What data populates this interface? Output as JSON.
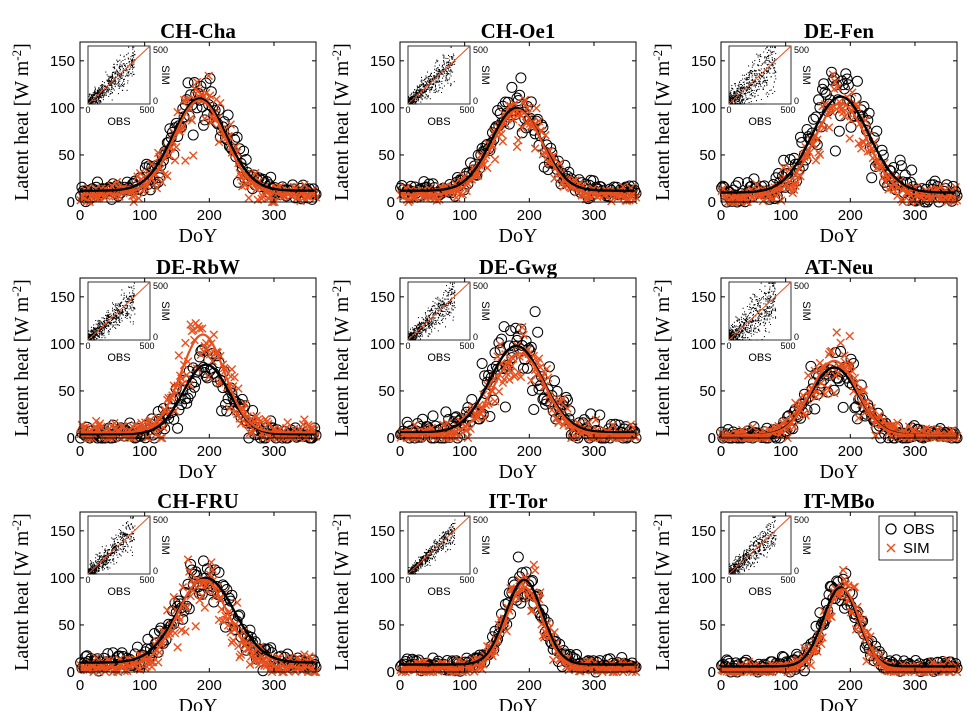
{
  "figure": {
    "ylabel_main": "Latent heat [W m",
    "ylabel_sup": "-2",
    "ylabel_close": "]",
    "xlabel": "DoY",
    "legend": [
      {
        "label": "OBS",
        "marker": "circle",
        "color": "#000000"
      },
      {
        "label": "SIM",
        "marker": "cross",
        "color": "#e8501e"
      }
    ],
    "colors": {
      "obs": "#000000",
      "sim": "#e8501e",
      "diag": "#e8501e"
    }
  },
  "chart_data": [
    {
      "type": "scatter",
      "title": "CH-Cha",
      "xlabel": "DoY",
      "ylabel": "Latent heat [W m-2]",
      "xlim": [
        0,
        365
      ],
      "ylim": [
        0,
        170
      ],
      "xticks": [
        0,
        100,
        200,
        300
      ],
      "yticks": [
        0,
        50,
        100,
        150
      ],
      "series": [
        {
          "name": "OBS",
          "model": {
            "base": 12,
            "peak": 110,
            "center": 185,
            "width": 58,
            "noise": 12
          }
        },
        {
          "name": "SIM",
          "model": {
            "base": 8,
            "peak": 108,
            "center": 185,
            "width": 56,
            "noise": 13
          }
        }
      ],
      "inset": {
        "xlabel": "OBS",
        "ylabel": "SIM",
        "xticks": [
          0,
          500
        ],
        "yticks": [
          0,
          500
        ],
        "spread": "medium"
      }
    },
    {
      "type": "scatter",
      "title": "CH-Oe1",
      "xlabel": "DoY",
      "ylabel": "Latent heat [W m-2]",
      "xlim": [
        0,
        365
      ],
      "ylim": [
        0,
        170
      ],
      "xticks": [
        0,
        100,
        200,
        300
      ],
      "yticks": [
        0,
        50,
        100,
        150
      ],
      "series": [
        {
          "name": "OBS",
          "model": {
            "base": 12,
            "peak": 100,
            "center": 180,
            "width": 55,
            "noise": 10
          }
        },
        {
          "name": "SIM",
          "model": {
            "base": 8,
            "peak": 98,
            "center": 182,
            "width": 54,
            "noise": 11
          }
        }
      ],
      "inset": {
        "xlabel": "OBS",
        "ylabel": "SIM",
        "xticks": [
          0,
          500
        ],
        "yticks": [
          0,
          500
        ],
        "spread": "medium"
      }
    },
    {
      "type": "scatter",
      "title": "DE-Fen",
      "xlabel": "DoY",
      "ylabel": "Latent heat [W m-2]",
      "xlim": [
        0,
        365
      ],
      "ylim": [
        0,
        170
      ],
      "xticks": [
        0,
        100,
        200,
        300
      ],
      "yticks": [
        0,
        50,
        100,
        150
      ],
      "series": [
        {
          "name": "OBS",
          "model": {
            "base": 10,
            "peak": 112,
            "center": 185,
            "width": 62,
            "noise": 16
          }
        },
        {
          "name": "SIM",
          "model": {
            "base": 6,
            "peak": 105,
            "center": 185,
            "width": 58,
            "noise": 14
          }
        }
      ],
      "inset": {
        "xlabel": "OBS",
        "ylabel": "SIM",
        "xticks": [
          0,
          500
        ],
        "yticks": [
          0,
          500
        ],
        "spread": "wide"
      }
    },
    {
      "type": "scatter",
      "title": "DE-RbW",
      "xlabel": "DoY",
      "ylabel": "Latent heat [W m-2]",
      "xlim": [
        0,
        365
      ],
      "ylim": [
        0,
        170
      ],
      "xticks": [
        0,
        100,
        200,
        300
      ],
      "yticks": [
        0,
        50,
        100,
        150
      ],
      "series": [
        {
          "name": "OBS",
          "model": {
            "base": 4,
            "peak": 78,
            "center": 195,
            "width": 50,
            "noise": 12
          }
        },
        {
          "name": "SIM",
          "model": {
            "base": 6,
            "peak": 110,
            "center": 190,
            "width": 48,
            "noise": 16
          }
        }
      ],
      "inset": {
        "xlabel": "OBS",
        "ylabel": "SIM",
        "xticks": [
          0,
          500
        ],
        "yticks": [
          0,
          500
        ],
        "spread": "medium"
      }
    },
    {
      "type": "scatter",
      "title": "DE-Gwg",
      "xlabel": "DoY",
      "ylabel": "Latent heat [W m-2]",
      "xlim": [
        0,
        365
      ],
      "ylim": [
        0,
        170
      ],
      "xticks": [
        0,
        100,
        200,
        300
      ],
      "yticks": [
        0,
        50,
        100,
        150
      ],
      "series": [
        {
          "name": "OBS",
          "model": {
            "base": 6,
            "peak": 98,
            "center": 180,
            "width": 58,
            "noise": 18
          }
        },
        {
          "name": "SIM",
          "model": {
            "base": 4,
            "peak": 90,
            "center": 185,
            "width": 55,
            "noise": 12
          }
        }
      ],
      "inset": {
        "xlabel": "OBS",
        "ylabel": "SIM",
        "xticks": [
          0,
          500
        ],
        "yticks": [
          0,
          500
        ],
        "spread": "medium"
      }
    },
    {
      "type": "scatter",
      "title": "AT-Neu",
      "xlabel": "DoY",
      "ylabel": "Latent heat [W m-2]",
      "xlim": [
        0,
        365
      ],
      "ylim": [
        0,
        170
      ],
      "xticks": [
        0,
        100,
        200,
        300
      ],
      "yticks": [
        0,
        50,
        100,
        150
      ],
      "series": [
        {
          "name": "OBS",
          "model": {
            "base": 3,
            "peak": 75,
            "center": 175,
            "width": 52,
            "noise": 10
          }
        },
        {
          "name": "SIM",
          "model": {
            "base": 3,
            "peak": 82,
            "center": 175,
            "width": 50,
            "noise": 12
          }
        }
      ],
      "inset": {
        "xlabel": "OBS",
        "ylabel": "SIM",
        "xticks": [
          0,
          500
        ],
        "yticks": [
          0,
          500
        ],
        "spread": "wide"
      }
    },
    {
      "type": "scatter",
      "title": "CH-FRU",
      "xlabel": "DoY",
      "ylabel": "Latent heat [W m-2]",
      "xlim": [
        0,
        365
      ],
      "ylim": [
        0,
        170
      ],
      "xticks": [
        0,
        100,
        200,
        300
      ],
      "yticks": [
        0,
        50,
        100,
        150
      ],
      "series": [
        {
          "name": "OBS",
          "model": {
            "base": 10,
            "peak": 100,
            "center": 195,
            "width": 62,
            "noise": 12
          }
        },
        {
          "name": "SIM",
          "model": {
            "base": 5,
            "peak": 98,
            "center": 190,
            "width": 56,
            "noise": 14
          }
        }
      ],
      "inset": {
        "xlabel": "OBS",
        "ylabel": "SIM",
        "xticks": [
          0,
          500
        ],
        "yticks": [
          0,
          500
        ],
        "spread": "medium"
      }
    },
    {
      "type": "scatter",
      "title": "IT-Tor",
      "xlabel": "DoY",
      "ylabel": "Latent heat [W m-2]",
      "xlim": [
        0,
        365
      ],
      "ylim": [
        0,
        170
      ],
      "xticks": [
        0,
        100,
        200,
        300
      ],
      "yticks": [
        0,
        50,
        100,
        150
      ],
      "series": [
        {
          "name": "OBS",
          "model": {
            "base": 8,
            "peak": 98,
            "center": 192,
            "width": 40,
            "noise": 10
          }
        },
        {
          "name": "SIM",
          "model": {
            "base": 4,
            "peak": 90,
            "center": 192,
            "width": 40,
            "noise": 10
          }
        }
      ],
      "inset": {
        "xlabel": "OBS",
        "ylabel": "SIM",
        "xticks": [
          0,
          500
        ],
        "yticks": [
          0,
          500
        ],
        "spread": "narrow"
      }
    },
    {
      "type": "scatter",
      "title": "IT-MBo",
      "xlabel": "DoY",
      "ylabel": "Latent heat [W m-2]",
      "xlim": [
        0,
        365
      ],
      "ylim": [
        0,
        170
      ],
      "xticks": [
        0,
        100,
        200,
        300
      ],
      "yticks": [
        0,
        50,
        100,
        150
      ],
      "series": [
        {
          "name": "OBS",
          "model": {
            "base": 6,
            "peak": 90,
            "center": 185,
            "width": 38,
            "noise": 10
          }
        },
        {
          "name": "SIM",
          "model": {
            "base": 3,
            "peak": 88,
            "center": 188,
            "width": 38,
            "noise": 10
          }
        }
      ],
      "inset": {
        "xlabel": "OBS",
        "ylabel": "SIM",
        "xticks": [
          0,
          500
        ],
        "yticks": [
          0,
          500
        ],
        "spread": "medium"
      },
      "legend_shown": true
    }
  ]
}
